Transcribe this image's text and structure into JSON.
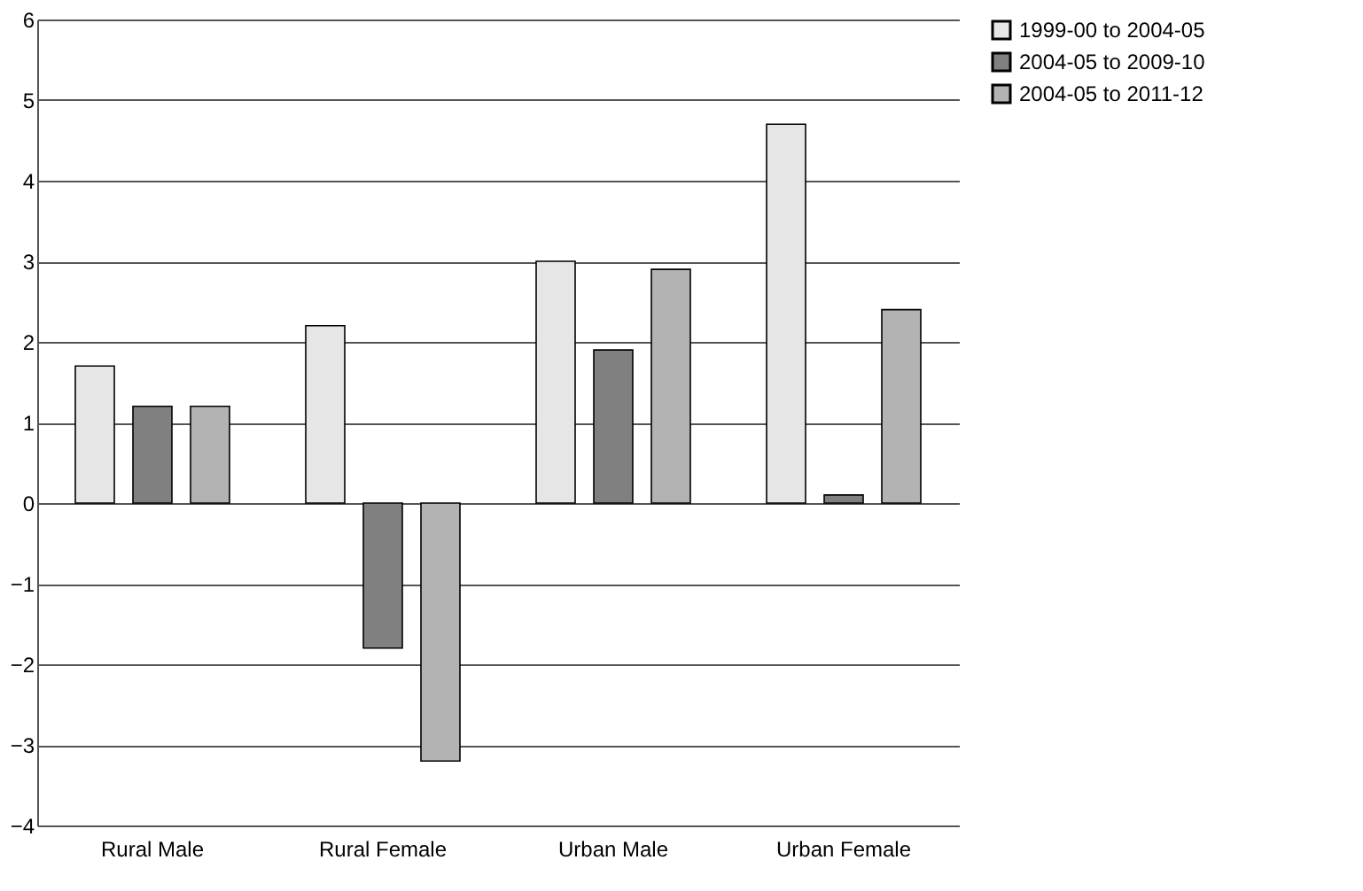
{
  "chart_data": {
    "type": "bar",
    "categories": [
      "Rural Male",
      "Rural Female",
      "Urban Male",
      "Urban Female"
    ],
    "series": [
      {
        "name": "1999-00 to 2004-05",
        "color": "#e6e6e6",
        "values": [
          1.7,
          2.2,
          3.0,
          4.7
        ]
      },
      {
        "name": "2004-05 to 2009-10",
        "color": "#808080",
        "values": [
          1.2,
          -1.8,
          1.9,
          0.1
        ]
      },
      {
        "name": "2004-05 to 2011-12",
        "color": "#b3b3b3",
        "values": [
          1.2,
          -3.2,
          2.9,
          2.4
        ]
      }
    ],
    "ylim": [
      -4,
      6
    ],
    "yticks": [
      -4,
      -3,
      -2,
      -1,
      0,
      1,
      2,
      3,
      4,
      5,
      6
    ],
    "grid": "y",
    "legend": "right"
  }
}
